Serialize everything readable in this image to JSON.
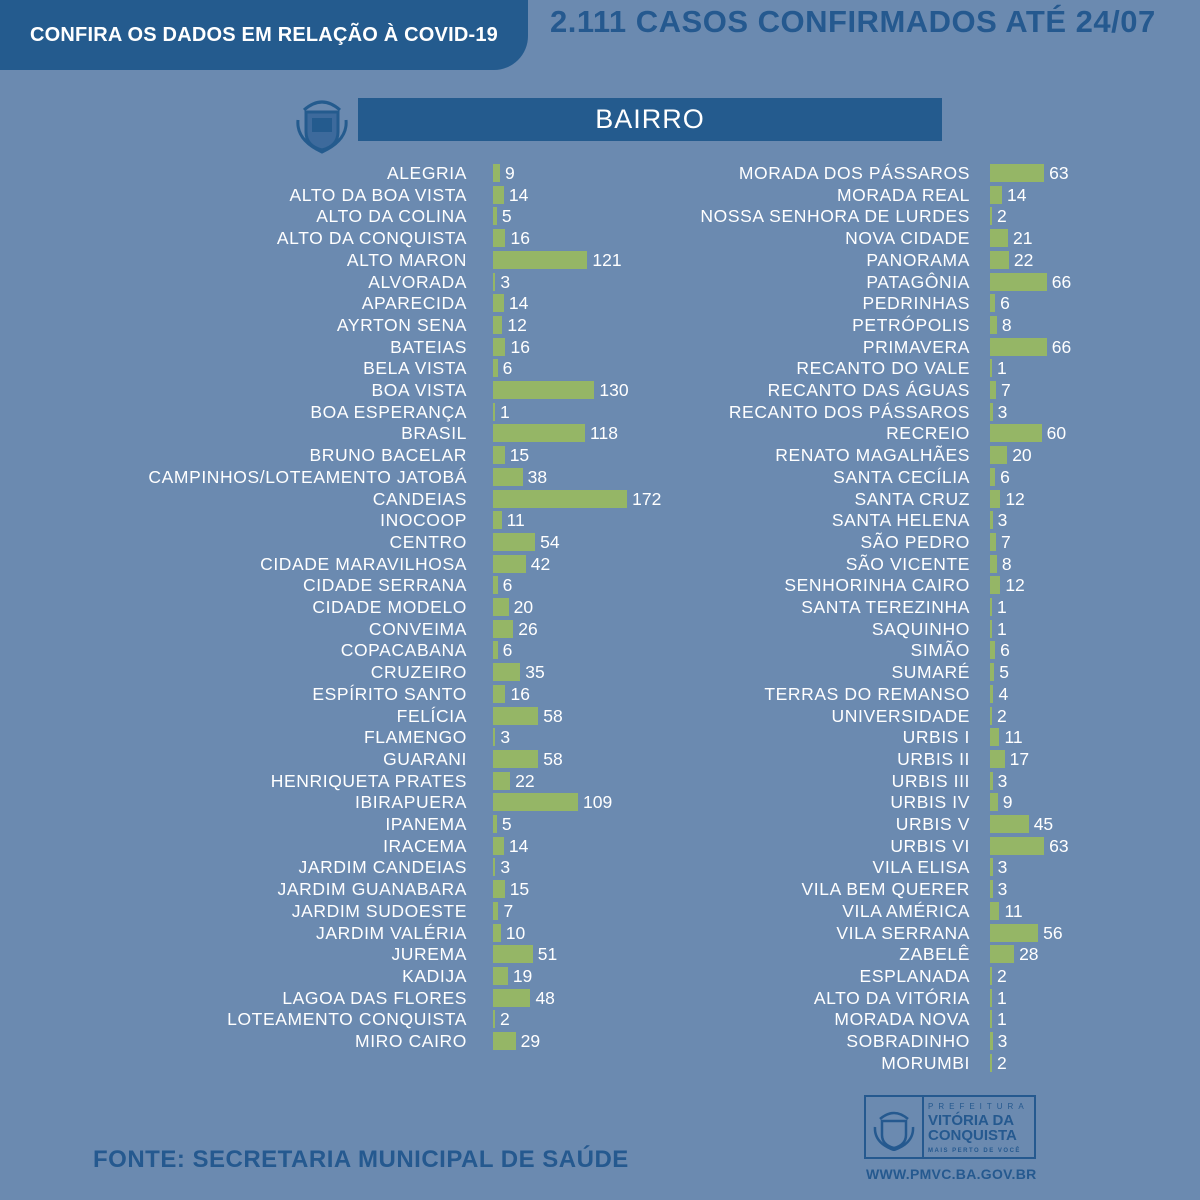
{
  "header": {
    "tab_title": "CONFIRA OS DADOS EM RELAÇÃO À COVID-19",
    "headline": "2.111 CASOS CONFIRMADOS ATÉ 24/07",
    "section_title": "BAIRRO"
  },
  "footer": {
    "source": "FONTE: SECRETARIA MUNICIPAL DE SAÚDE",
    "logo_prefix": "PREFEITURA",
    "logo_city_line1": "VITÓRIA DA",
    "logo_city_line2": "CONQUISTA",
    "logo_slogan": "MAIS PERTO DE VOCÊ",
    "url": "WWW.PMVC.BA.GOV.BR"
  },
  "colors": {
    "background": "#6b8ab0",
    "brand": "#245b8e",
    "bar": "#95b666"
  },
  "chart_data": {
    "type": "bar",
    "orientation": "horizontal",
    "title": "BAIRRO",
    "series": [
      {
        "name": "left-column",
        "categories": [
          "ALEGRIA",
          "ALTO DA BOA VISTA",
          "ALTO DA COLINA",
          "ALTO DA CONQUISTA",
          "ALTO MARON",
          "ALVORADA",
          "APARECIDA",
          "AYRTON SENA",
          "BATEIAS",
          "BELA VISTA",
          "BOA VISTA",
          "BOA ESPERANÇA",
          "BRASIL",
          "BRUNO BACELAR",
          "CAMPINHOS/LOTEAMENTO JATOBÁ",
          "CANDEIAS",
          "INOCOOP",
          "CENTRO",
          "CIDADE MARAVILHOSA",
          "CIDADE SERRANA",
          "CIDADE MODELO",
          "CONVEIMA",
          "COPACABANA",
          "CRUZEIRO",
          "ESPÍRITO SANTO",
          "FELÍCIA",
          "FLAMENGO",
          "GUARANI",
          "HENRIQUETA PRATES",
          "IBIRAPUERA",
          "IPANEMA",
          "IRACEMA",
          "JARDIM CANDEIAS",
          "JARDIM GUANABARA",
          "JARDIM SUDOESTE",
          "JARDIM VALÉRIA",
          "JUREMA",
          "KADIJA",
          "LAGOA DAS FLORES",
          "LOTEAMENTO CONQUISTA",
          "MIRO CAIRO"
        ],
        "values": [
          9,
          14,
          5,
          16,
          121,
          3,
          14,
          12,
          16,
          6,
          130,
          1,
          118,
          15,
          38,
          172,
          11,
          54,
          42,
          6,
          20,
          26,
          6,
          35,
          16,
          58,
          3,
          58,
          22,
          109,
          5,
          14,
          3,
          15,
          7,
          10,
          51,
          19,
          48,
          2,
          29
        ]
      },
      {
        "name": "right-column",
        "categories": [
          "MORADA DOS PÁSSAROS",
          "MORADA REAL",
          "NOSSA SENHORA DE LURDES",
          "NOVA CIDADE",
          "PANORAMA",
          "PATAGÔNIA",
          "PEDRINHAS",
          "PETRÓPOLIS",
          "PRIMAVERA",
          "RECANTO DO VALE",
          "RECANTO DAS ÁGUAS",
          "RECANTO DOS PÁSSAROS",
          "RECREIO",
          "RENATO MAGALHÃES",
          "SANTA CECÍLIA",
          "SANTA CRUZ",
          "SANTA HELENA",
          "SÃO PEDRO",
          "SÃO VICENTE",
          "SENHORINHA CAIRO",
          "SANTA TEREZINHA",
          "SAQUINHO",
          "SIMÃO",
          "SUMARÉ",
          "TERRAS DO REMANSO",
          "UNIVERSIDADE",
          "URBIS I",
          "URBIS II",
          "URBIS III",
          "URBIS IV",
          "URBIS V",
          "URBIS VI",
          "VILA ELISA",
          "VILA BEM QUERER",
          "VILA AMÉRICA",
          "VILA SERRANA",
          "ZABELÊ",
          "ESPLANADA",
          "ALTO DA VITÓRIA",
          "MORADA NOVA",
          "SOBRADINHO",
          "MORUMBI"
        ],
        "values": [
          63,
          14,
          2,
          21,
          22,
          66,
          6,
          8,
          66,
          1,
          7,
          3,
          60,
          20,
          6,
          12,
          3,
          7,
          8,
          12,
          1,
          1,
          6,
          5,
          4,
          2,
          11,
          17,
          3,
          9,
          45,
          63,
          3,
          3,
          11,
          56,
          28,
          2,
          1,
          1,
          3,
          2
        ]
      }
    ],
    "xlabel": "",
    "ylabel": ""
  }
}
